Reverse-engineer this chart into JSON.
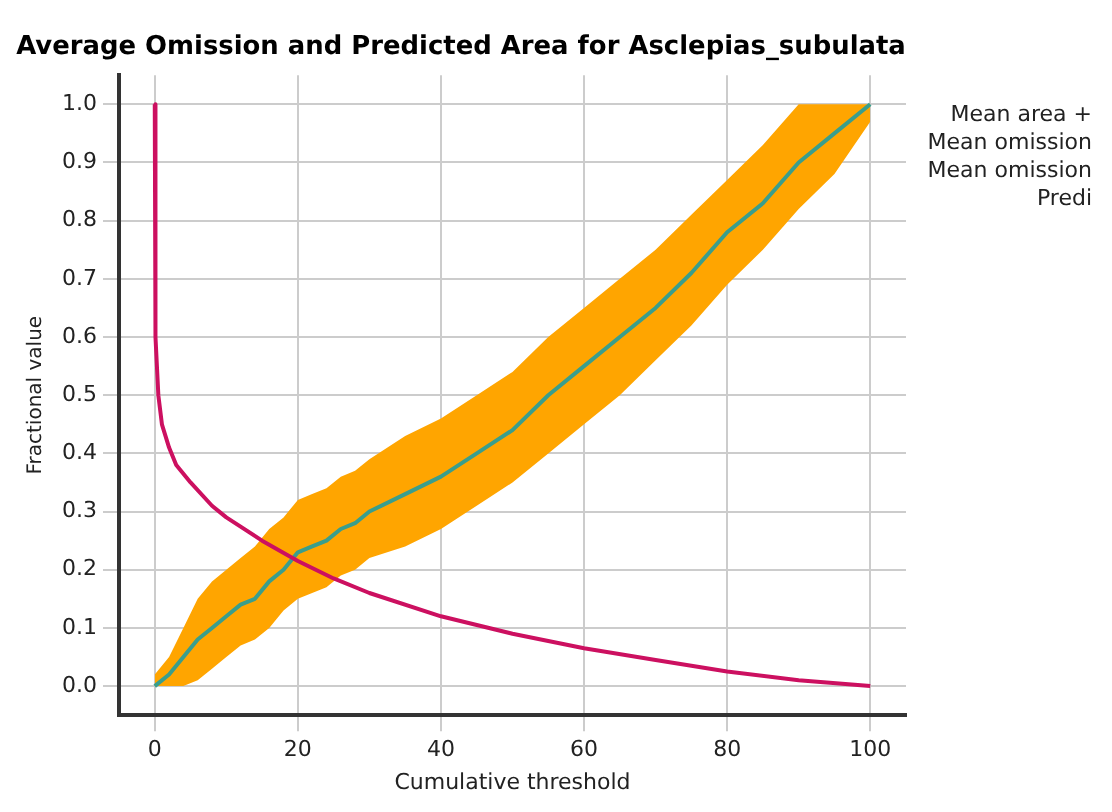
{
  "chart_data": {
    "type": "line",
    "title": "Average Omission and Predicted Area for Asclepias_subulata",
    "xlabel": "Cumulative threshold",
    "ylabel": "Fractional value",
    "xlim": [
      -5,
      105
    ],
    "xticks": [
      0,
      20,
      40,
      60,
      80,
      100
    ],
    "ylim": [
      -0.05,
      1.05
    ],
    "yticks": [
      {
        "value": 0,
        "label": "0.0"
      },
      0.1,
      0.2,
      0.3,
      0.4,
      0.5,
      0.6,
      0.7,
      0.8,
      0.9,
      {
        "value": 1,
        "label": "1.0"
      }
    ],
    "grid": true,
    "legend": false,
    "series": [
      {
        "color": "#3a9e8c",
        "x": [
          0,
          2,
          4,
          6,
          8,
          10,
          12,
          14,
          16,
          18,
          20,
          22,
          24,
          26,
          28,
          30,
          35,
          40,
          45,
          50,
          55,
          60,
          65,
          70,
          75,
          80,
          85,
          90,
          95,
          100
        ],
        "values": [
          0,
          0.02,
          0.05,
          0.08,
          0.1,
          0.12,
          0.14,
          0.15,
          0.18,
          0.2,
          0.23,
          0.24,
          0.25,
          0.27,
          0.28,
          0.3,
          0.33,
          0.36,
          0.4,
          0.44,
          0.5,
          0.55,
          0.6,
          0.65,
          0.71,
          0.78,
          0.83,
          0.9,
          0.95,
          1.0
        ],
        "lower": [
          0,
          0,
          0,
          0.01,
          0.03,
          0.05,
          0.07,
          0.08,
          0.1,
          0.13,
          0.15,
          0.16,
          0.17,
          0.19,
          0.2,
          0.22,
          0.24,
          0.27,
          0.31,
          0.35,
          0.4,
          0.45,
          0.5,
          0.56,
          0.62,
          0.69,
          0.75,
          0.82,
          0.88,
          0.97
        ],
        "upper": [
          0.02,
          0.05,
          0.1,
          0.15,
          0.18,
          0.2,
          0.22,
          0.24,
          0.27,
          0.29,
          0.32,
          0.33,
          0.34,
          0.36,
          0.37,
          0.39,
          0.43,
          0.46,
          0.5,
          0.54,
          0.6,
          0.65,
          0.7,
          0.75,
          0.81,
          0.87,
          0.93,
          1.0,
          1.0,
          1.0
        ]
      },
      {
        "color": "#cc1060",
        "x": [
          0,
          0.1,
          0.5,
          1,
          2,
          3,
          5,
          8,
          10,
          15,
          20,
          25,
          30,
          40,
          50,
          60,
          70,
          80,
          90,
          100
        ],
        "values": [
          1.0,
          0.6,
          0.5,
          0.45,
          0.41,
          0.38,
          0.35,
          0.31,
          0.29,
          0.25,
          0.215,
          0.185,
          0.16,
          0.12,
          0.09,
          0.065,
          0.045,
          0.025,
          0.01,
          0.0
        ]
      }
    ],
    "annotations": [
      "Mean area +",
      "Mean omission",
      "Mean omission",
      "Predi"
    ]
  }
}
